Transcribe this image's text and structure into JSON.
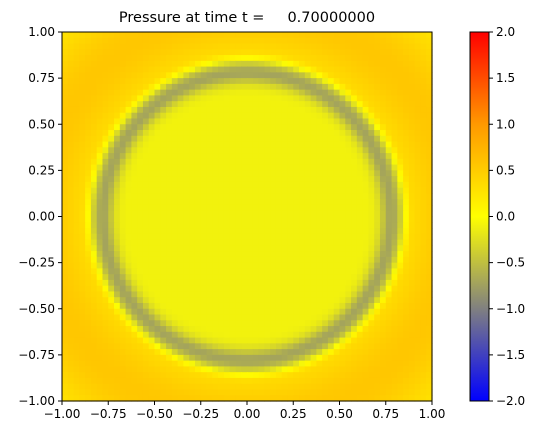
{
  "chart_data": {
    "type": "heatmap",
    "title": "Pressure at time t =     0.70000000",
    "xlabel": "",
    "ylabel": "",
    "xlim": [
      -1.0,
      1.0
    ],
    "ylim": [
      -1.0,
      1.0
    ],
    "grid": false,
    "grid_cells": [
      64,
      64
    ],
    "x_ticks": [
      "−1.00",
      "−0.75",
      "−0.50",
      "−0.25",
      "0.00",
      "0.25",
      "0.50",
      "0.75",
      "1.00"
    ],
    "x_tick_values": [
      -1.0,
      -0.75,
      -0.5,
      -0.25,
      0.0,
      0.25,
      0.5,
      0.75,
      1.0
    ],
    "y_ticks": [
      "−1.00",
      "−0.75",
      "−0.50",
      "−0.25",
      "0.00",
      "0.25",
      "0.50",
      "0.75",
      "1.00"
    ],
    "y_tick_values": [
      -1.0,
      -0.75,
      -0.5,
      -0.25,
      0.0,
      0.25,
      0.5,
      0.75,
      1.0
    ],
    "field": {
      "description_values": "radially symmetric pressure field",
      "center_value": -0.1,
      "ring_radius": 0.78,
      "ring_width": 0.06,
      "ring_min_value": -0.72,
      "outer_bright_radius": 0.9,
      "outer_peak_value": 0.55,
      "outer_peak_radius": 1.12,
      "corner_value": 0.15
    },
    "colorbar": {
      "vmin": -2.0,
      "vmax": 2.0,
      "ticks": [
        "−2.0",
        "−1.5",
        "−1.0",
        "−0.5",
        "0.0",
        "0.5",
        "1.0",
        "1.5",
        "2.0"
      ],
      "tick_values": [
        -2.0,
        -1.5,
        -1.0,
        -0.5,
        0.0,
        0.5,
        1.0,
        1.5,
        2.0
      ],
      "colors": [
        {
          "value": -2.0,
          "color": "#0000ff"
        },
        {
          "value": -1.0,
          "color": "#808080"
        },
        {
          "value": 0.0,
          "color": "#ffff00"
        },
        {
          "value": 1.0,
          "color": "#ff9900"
        },
        {
          "value": 2.0,
          "color": "#ff0000"
        }
      ]
    }
  }
}
